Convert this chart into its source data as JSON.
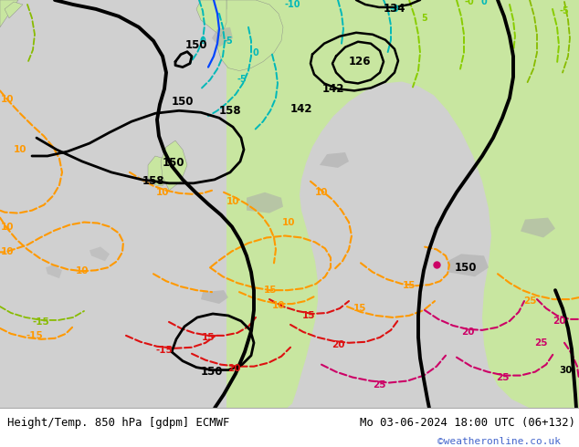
{
  "title_left": "Height/Temp. 850 hPa [gdpm] ECMWF",
  "title_right": "Mo 03-06-2024 18:00 UTC (06+132)",
  "watermark": "©weatheronline.co.uk",
  "figsize": [
    6.34,
    4.9
  ],
  "dpi": 100,
  "ocean_color": "#d8d8d8",
  "land_green_color": "#c8e6a0",
  "land_gray_color": "#a8a8a0",
  "bottom_bg": "#f0f0f0",
  "title_color": "#000000",
  "watermark_color": "#4466cc"
}
